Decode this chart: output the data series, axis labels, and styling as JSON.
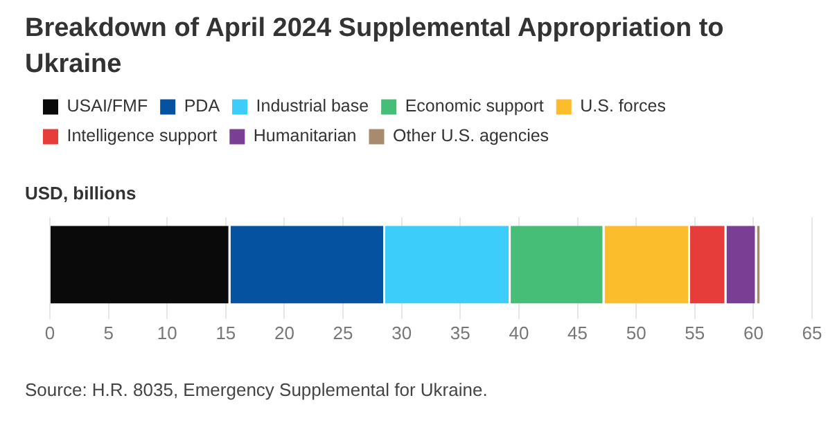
{
  "chart_data": {
    "type": "bar",
    "orientation": "horizontal",
    "stacked": true,
    "title": "Breakdown of April 2024 Supplemental Appropriation to Ukraine",
    "xlabel": "USD, billions",
    "categories": [
      null
    ],
    "series": [
      {
        "name": "USAI/FMF",
        "color": "#0a0a0a",
        "values": [
          15.4
        ]
      },
      {
        "name": "PDA",
        "color": "#0452a0",
        "values": [
          13.2
        ]
      },
      {
        "name": "Industrial base",
        "color": "#3dcdfb",
        "values": [
          10.7
        ]
      },
      {
        "name": "Economic support",
        "color": "#46be78",
        "values": [
          8.0
        ]
      },
      {
        "name": "U.S. forces",
        "color": "#fbbd2c",
        "values": [
          7.3
        ]
      },
      {
        "name": "Intelligence support",
        "color": "#e63c3a",
        "values": [
          3.1
        ]
      },
      {
        "name": "Humanitarian",
        "color": "#7a3e95",
        "values": [
          2.6
        ]
      },
      {
        "name": "Other U.S. agencies",
        "color": "#a88b6c",
        "values": [
          0.4
        ]
      }
    ],
    "xlim": [
      0,
      65
    ],
    "xticks": [
      0,
      5,
      10,
      15,
      20,
      25,
      30,
      35,
      40,
      45,
      50,
      55,
      60,
      65
    ],
    "grid": "x",
    "legend": "top left",
    "annotations": [
      "Source: H.R. 8035, Emergency Supplemental for Ukraine."
    ]
  }
}
